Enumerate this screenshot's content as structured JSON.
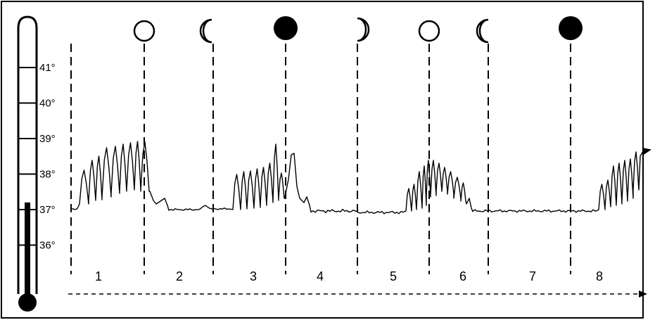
{
  "thermometer": {
    "ticks": [
      {
        "label": "41°",
        "value": 41
      },
      {
        "label": "40°",
        "value": 40
      },
      {
        "label": "39°",
        "value": 39
      },
      {
        "label": "38°",
        "value": 38
      },
      {
        "label": "37°",
        "value": 37
      },
      {
        "label": "36°",
        "value": 36
      }
    ],
    "mercury_level": 37.2
  },
  "periods": [
    {
      "label": "1",
      "moon": "full-moon"
    },
    {
      "label": "2",
      "moon": "waning-crescent"
    },
    {
      "label": "3",
      "moon": "new-moon"
    },
    {
      "label": "4",
      "moon": "waxing-crescent"
    },
    {
      "label": "5",
      "moon": "full-moon"
    },
    {
      "label": "6",
      "moon": "waning-crescent"
    },
    {
      "label": "7",
      "moon": "new-moon"
    },
    {
      "label": "8",
      "moon": ""
    }
  ],
  "colors": {
    "ink": "#000000",
    "paper": "#ffffff"
  }
}
